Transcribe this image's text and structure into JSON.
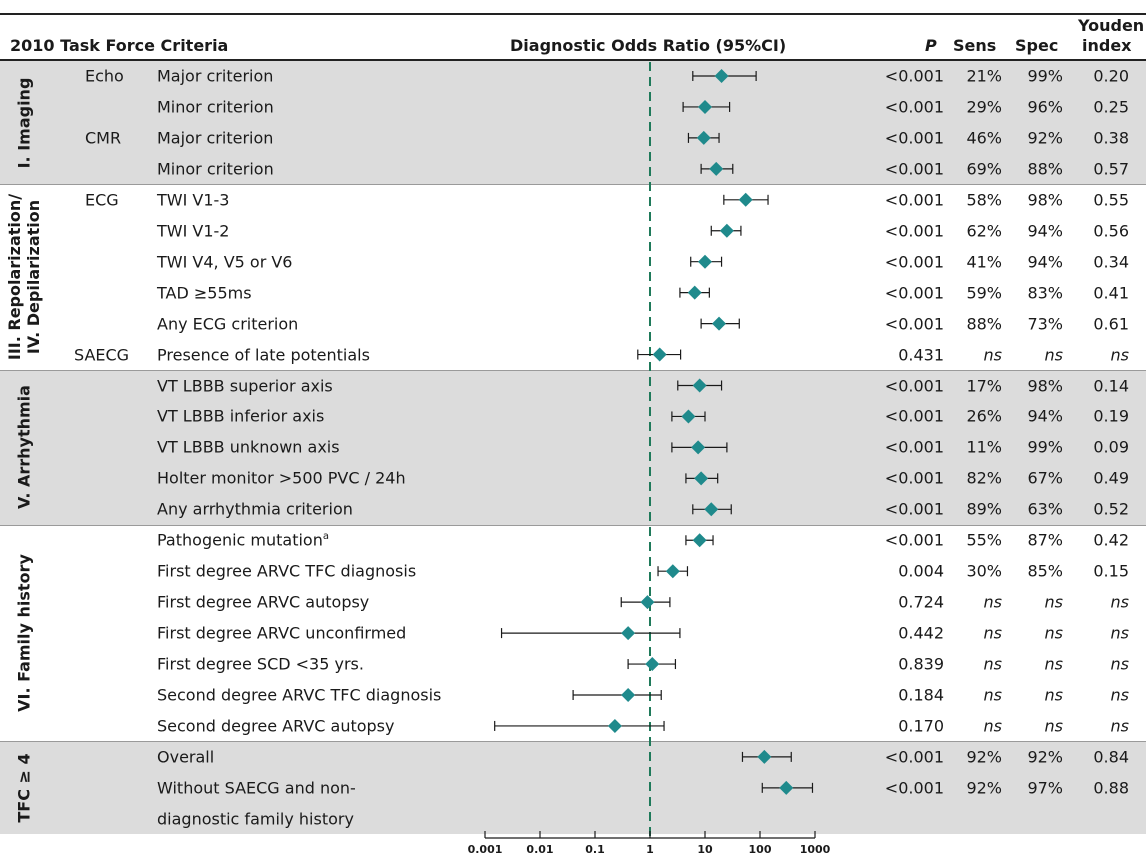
{
  "header": {
    "criteria": "2010 Task Force Criteria",
    "dor": "Diagnostic Odds Ratio (95%CI)",
    "p": "P",
    "sens": "Sens",
    "spec": "Spec",
    "youden_line1": "Youden",
    "youden_line2": "index"
  },
  "sections": [
    {
      "label_lines": [
        "I. Imaging"
      ],
      "shaded": true,
      "row_start": 0,
      "row_end": 3
    },
    {
      "label_lines": [
        "III. Repolarization/",
        "IV. Depilarization"
      ],
      "shaded": false,
      "row_start": 4,
      "row_end": 9
    },
    {
      "label_lines": [
        "V. Arrhythmia"
      ],
      "shaded": true,
      "row_start": 10,
      "row_end": 14
    },
    {
      "label_lines": [
        "VI. Family history"
      ],
      "shaded": false,
      "row_start": 15,
      "row_end": 21
    },
    {
      "label_lines": [
        "TFC ≥ 4"
      ],
      "shaded": true,
      "row_start": 22,
      "row_end": 24
    }
  ],
  "subgroups": [
    {
      "label": "Echo",
      "row": 0
    },
    {
      "label": "CMR",
      "row": 2
    },
    {
      "label": "ECG",
      "row": 4
    },
    {
      "label": "SAECG",
      "row": 9
    }
  ],
  "rows": [
    {
      "label": "Major criterion",
      "p": "<0.001",
      "sens": "21%",
      "spec": "99%",
      "youden": "0.20"
    },
    {
      "label": "Minor criterion",
      "p": "<0.001",
      "sens": "29%",
      "spec": "96%",
      "youden": "0.25"
    },
    {
      "label": "Major criterion",
      "p": "<0.001",
      "sens": "46%",
      "spec": "92%",
      "youden": "0.38"
    },
    {
      "label": "Minor criterion",
      "p": "<0.001",
      "sens": "69%",
      "spec": "88%",
      "youden": "0.57"
    },
    {
      "label": "TWI V1-3",
      "p": "<0.001",
      "sens": "58%",
      "spec": "98%",
      "youden": "0.55"
    },
    {
      "label": "TWI V1-2",
      "p": "<0.001",
      "sens": "62%",
      "spec": "94%",
      "youden": "0.56"
    },
    {
      "label": "TWI V4, V5 or V6",
      "p": "<0.001",
      "sens": "41%",
      "spec": "94%",
      "youden": "0.34"
    },
    {
      "label": "TAD ≥55ms",
      "p": "<0.001",
      "sens": "59%",
      "spec": "83%",
      "youden": "0.41"
    },
    {
      "label": "Any ECG criterion",
      "p": "<0.001",
      "sens": "88%",
      "spec": "73%",
      "youden": "0.61"
    },
    {
      "label": "Presence of late potentials",
      "p": "0.431",
      "sens": "ns",
      "spec": "ns",
      "youden": "ns"
    },
    {
      "label": "VT LBBB superior axis",
      "p": "<0.001",
      "sens": "17%",
      "spec": "98%",
      "youden": "0.14"
    },
    {
      "label": "VT LBBB inferior axis",
      "p": "<0.001",
      "sens": "26%",
      "spec": "94%",
      "youden": "0.19"
    },
    {
      "label": "VT LBBB unknown axis",
      "p": "<0.001",
      "sens": "11%",
      "spec": "99%",
      "youden": "0.09"
    },
    {
      "label": "Holter monitor >500 PVC / 24h",
      "p": "<0.001",
      "sens": "82%",
      "spec": "67%",
      "youden": "0.49"
    },
    {
      "label": "Any arrhythmia criterion",
      "p": "<0.001",
      "sens": "89%",
      "spec": "63%",
      "youden": "0.52"
    },
    {
      "label": "Pathogenic mutation",
      "sup": "a",
      "p": "<0.001",
      "sens": "55%",
      "spec": "87%",
      "youden": "0.42"
    },
    {
      "label": "First degree ARVC TFC diagnosis",
      "p": "0.004",
      "sens": "30%",
      "spec": "85%",
      "youden": "0.15"
    },
    {
      "label": "First degree ARVC autopsy",
      "p": "0.724",
      "sens": "ns",
      "spec": "ns",
      "youden": "ns"
    },
    {
      "label": "First degree ARVC unconfirmed",
      "p": "0.442",
      "sens": "ns",
      "spec": "ns",
      "youden": "ns"
    },
    {
      "label": "First degree SCD <35 yrs.",
      "p": "0.839",
      "sens": "ns",
      "spec": "ns",
      "youden": "ns"
    },
    {
      "label": "Second degree ARVC TFC diagnosis",
      "p": "0.184",
      "sens": "ns",
      "spec": "ns",
      "youden": "ns"
    },
    {
      "label": "Second degree ARVC autopsy",
      "p": "0.170",
      "sens": "ns",
      "spec": "ns",
      "youden": "ns"
    },
    {
      "label": "Overall",
      "p": "<0.001",
      "sens": "92%",
      "spec": "92%",
      "youden": "0.84"
    },
    {
      "label": "Without SAECG and non-",
      "p": "<0.001",
      "sens": "92%",
      "spec": "97%",
      "youden": "0.88"
    },
    {
      "label": "diagnostic family history",
      "p": "",
      "sens": "",
      "spec": "",
      "youden": ""
    }
  ],
  "chart_data": {
    "type": "forest",
    "x_scale": "log",
    "xlim": [
      0.001,
      1000
    ],
    "xticks": [
      0.001,
      0.01,
      0.1,
      1,
      10,
      100,
      1000
    ],
    "xtick_labels": [
      "0.001",
      "0.01",
      "0.1",
      "1",
      "10",
      "100",
      "1000"
    ],
    "reference_line": 1,
    "marker_color": "#1f8a8c",
    "points": [
      {
        "or": 20,
        "lo": 6,
        "hi": 85
      },
      {
        "or": 10,
        "lo": 4,
        "hi": 28
      },
      {
        "or": 9.5,
        "lo": 5,
        "hi": 18
      },
      {
        "or": 16,
        "lo": 8.5,
        "hi": 32
      },
      {
        "or": 55,
        "lo": 22,
        "hi": 140
      },
      {
        "or": 25,
        "lo": 13,
        "hi": 45
      },
      {
        "or": 10,
        "lo": 5.5,
        "hi": 20
      },
      {
        "or": 6.5,
        "lo": 3.5,
        "hi": 12
      },
      {
        "or": 18,
        "lo": 8.5,
        "hi": 42
      },
      {
        "or": 1.5,
        "lo": 0.6,
        "hi": 3.6
      },
      {
        "or": 8,
        "lo": 3.2,
        "hi": 20
      },
      {
        "or": 5,
        "lo": 2.5,
        "hi": 10
      },
      {
        "or": 7.5,
        "lo": 2.5,
        "hi": 25
      },
      {
        "or": 8.5,
        "lo": 4.5,
        "hi": 17
      },
      {
        "or": 13,
        "lo": 6,
        "hi": 30
      },
      {
        "or": 8,
        "lo": 4.5,
        "hi": 14
      },
      {
        "or": 2.6,
        "lo": 1.4,
        "hi": 4.8
      },
      {
        "or": 0.9,
        "lo": 0.3,
        "hi": 2.3
      },
      {
        "or": 0.4,
        "lo": 0.002,
        "hi": 3.5
      },
      {
        "or": 1.1,
        "lo": 0.4,
        "hi": 2.9
      },
      {
        "or": 0.4,
        "lo": 0.04,
        "hi": 1.6
      },
      {
        "or": 0.23,
        "lo": 0.0015,
        "hi": 1.8
      },
      {
        "or": 120,
        "lo": 48,
        "hi": 370
      },
      {
        "or": 300,
        "lo": 110,
        "hi": 900
      }
    ]
  }
}
